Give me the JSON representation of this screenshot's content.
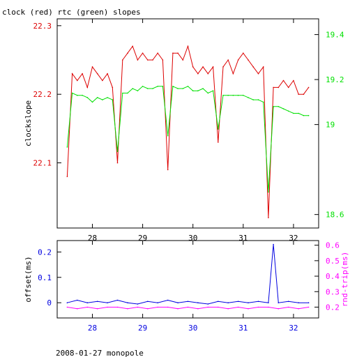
{
  "title": "clock (red) rtc (green) slopes",
  "footer": "2008-01-27 monopole",
  "colors": {
    "red": "#dd0000",
    "green": "#00e000",
    "blue": "#0000e0",
    "magenta": "#ff00ff",
    "black": "#000000"
  },
  "chart_data": [
    {
      "type": "line",
      "ylabel": "clockslope",
      "xlim": [
        27.3,
        32.5
      ],
      "x_ticks": [
        28,
        29,
        30,
        31,
        32
      ],
      "ylim_left": [
        22.005,
        22.31
      ],
      "left_ticks": [
        "22.1",
        "22.2",
        "22.3"
      ],
      "ylim_right": [
        18.54,
        19.47
      ],
      "right_ticks": [
        "18.6",
        "19",
        "19.2",
        "19.4"
      ],
      "series": [
        {
          "color": "red",
          "axis": "left",
          "x": [
            27.5,
            27.6,
            27.7,
            27.8,
            27.9,
            28.0,
            28.1,
            28.2,
            28.3,
            28.4,
            28.5,
            28.6,
            28.7,
            28.8,
            28.9,
            29.0,
            29.1,
            29.2,
            29.3,
            29.4,
            29.5,
            29.6,
            29.7,
            29.8,
            29.9,
            30.0,
            30.1,
            30.2,
            30.3,
            30.4,
            30.5,
            30.6,
            30.7,
            30.8,
            30.9,
            31.0,
            31.1,
            31.2,
            31.3,
            31.4,
            31.5,
            31.6,
            31.7,
            31.8,
            31.9,
            32.0,
            32.1,
            32.2,
            32.3
          ],
          "values": [
            22.08,
            22.23,
            22.22,
            22.23,
            22.21,
            22.24,
            22.23,
            22.22,
            22.23,
            22.21,
            22.1,
            22.25,
            22.26,
            22.27,
            22.25,
            22.26,
            22.25,
            22.25,
            22.26,
            22.25,
            22.09,
            22.26,
            22.26,
            22.25,
            22.27,
            22.24,
            22.23,
            22.24,
            22.23,
            22.24,
            22.13,
            22.24,
            22.25,
            22.23,
            22.25,
            22.26,
            22.25,
            22.24,
            22.23,
            22.24,
            22.02,
            22.21,
            22.21,
            22.22,
            22.21,
            22.22,
            22.2,
            22.2,
            22.21
          ]
        },
        {
          "color": "green",
          "axis": "right",
          "x": [
            27.5,
            27.6,
            27.7,
            27.8,
            27.9,
            28.0,
            28.1,
            28.2,
            28.3,
            28.4,
            28.5,
            28.6,
            28.7,
            28.8,
            28.9,
            29.0,
            29.1,
            29.2,
            29.3,
            29.4,
            29.5,
            29.6,
            29.7,
            29.8,
            29.9,
            30.0,
            30.1,
            30.2,
            30.3,
            30.4,
            30.5,
            30.6,
            30.7,
            30.8,
            30.9,
            31.0,
            31.1,
            31.2,
            31.3,
            31.4,
            31.5,
            31.6,
            31.7,
            31.8,
            31.9,
            32.0,
            32.1,
            32.2,
            32.3
          ],
          "values": [
            18.9,
            19.14,
            19.13,
            19.13,
            19.12,
            19.1,
            19.12,
            19.11,
            19.12,
            19.11,
            18.88,
            19.14,
            19.14,
            19.16,
            19.15,
            19.17,
            19.16,
            19.16,
            19.17,
            19.17,
            18.95,
            19.17,
            19.16,
            19.16,
            19.17,
            19.15,
            19.15,
            19.16,
            19.14,
            19.15,
            18.98,
            19.13,
            19.13,
            19.13,
            19.13,
            19.13,
            19.12,
            19.11,
            19.11,
            19.1,
            18.7,
            19.08,
            19.08,
            19.07,
            19.06,
            19.05,
            19.05,
            19.04,
            19.04
          ]
        }
      ]
    },
    {
      "type": "line",
      "ylabel_left": "offset(ms)",
      "ylabel_right": "rnd-trip(ms)",
      "xlim": [
        27.3,
        32.5
      ],
      "x_ticks": [
        28,
        29,
        30,
        31,
        32
      ],
      "ylim_left": [
        -0.06,
        0.245
      ],
      "left_ticks": [
        "0",
        "0.1",
        "0.2"
      ],
      "ylim_right": [
        0.13,
        0.63
      ],
      "right_ticks": [
        "0.2",
        "0.3",
        "0.4",
        "0.5",
        "0.6"
      ],
      "series": [
        {
          "color": "blue",
          "axis": "left",
          "x": [
            27.5,
            27.7,
            27.9,
            28.1,
            28.3,
            28.5,
            28.7,
            28.9,
            29.1,
            29.3,
            29.5,
            29.7,
            29.9,
            30.1,
            30.3,
            30.5,
            30.7,
            30.9,
            31.1,
            31.3,
            31.5,
            31.6,
            31.7,
            31.9,
            32.1,
            32.3
          ],
          "values": [
            0.0,
            0.01,
            0.0,
            0.005,
            0.0,
            0.01,
            0.0,
            -0.005,
            0.005,
            0.0,
            0.01,
            0.0,
            0.005,
            0.0,
            -0.005,
            0.005,
            0.0,
            0.005,
            0.0,
            0.005,
            0.0,
            0.23,
            0.0,
            0.005,
            0.0,
            0.0
          ]
        },
        {
          "color": "magenta",
          "axis": "right",
          "x": [
            27.5,
            27.7,
            27.9,
            28.1,
            28.3,
            28.5,
            28.7,
            28.9,
            29.1,
            29.3,
            29.5,
            29.7,
            29.9,
            30.1,
            30.3,
            30.5,
            30.7,
            30.9,
            31.1,
            31.3,
            31.5,
            31.7,
            31.9,
            32.1,
            32.3
          ],
          "values": [
            0.2,
            0.19,
            0.2,
            0.19,
            0.2,
            0.2,
            0.19,
            0.2,
            0.19,
            0.2,
            0.2,
            0.19,
            0.2,
            0.19,
            0.2,
            0.2,
            0.19,
            0.2,
            0.19,
            0.2,
            0.2,
            0.19,
            0.2,
            0.19,
            0.2
          ]
        }
      ]
    }
  ]
}
